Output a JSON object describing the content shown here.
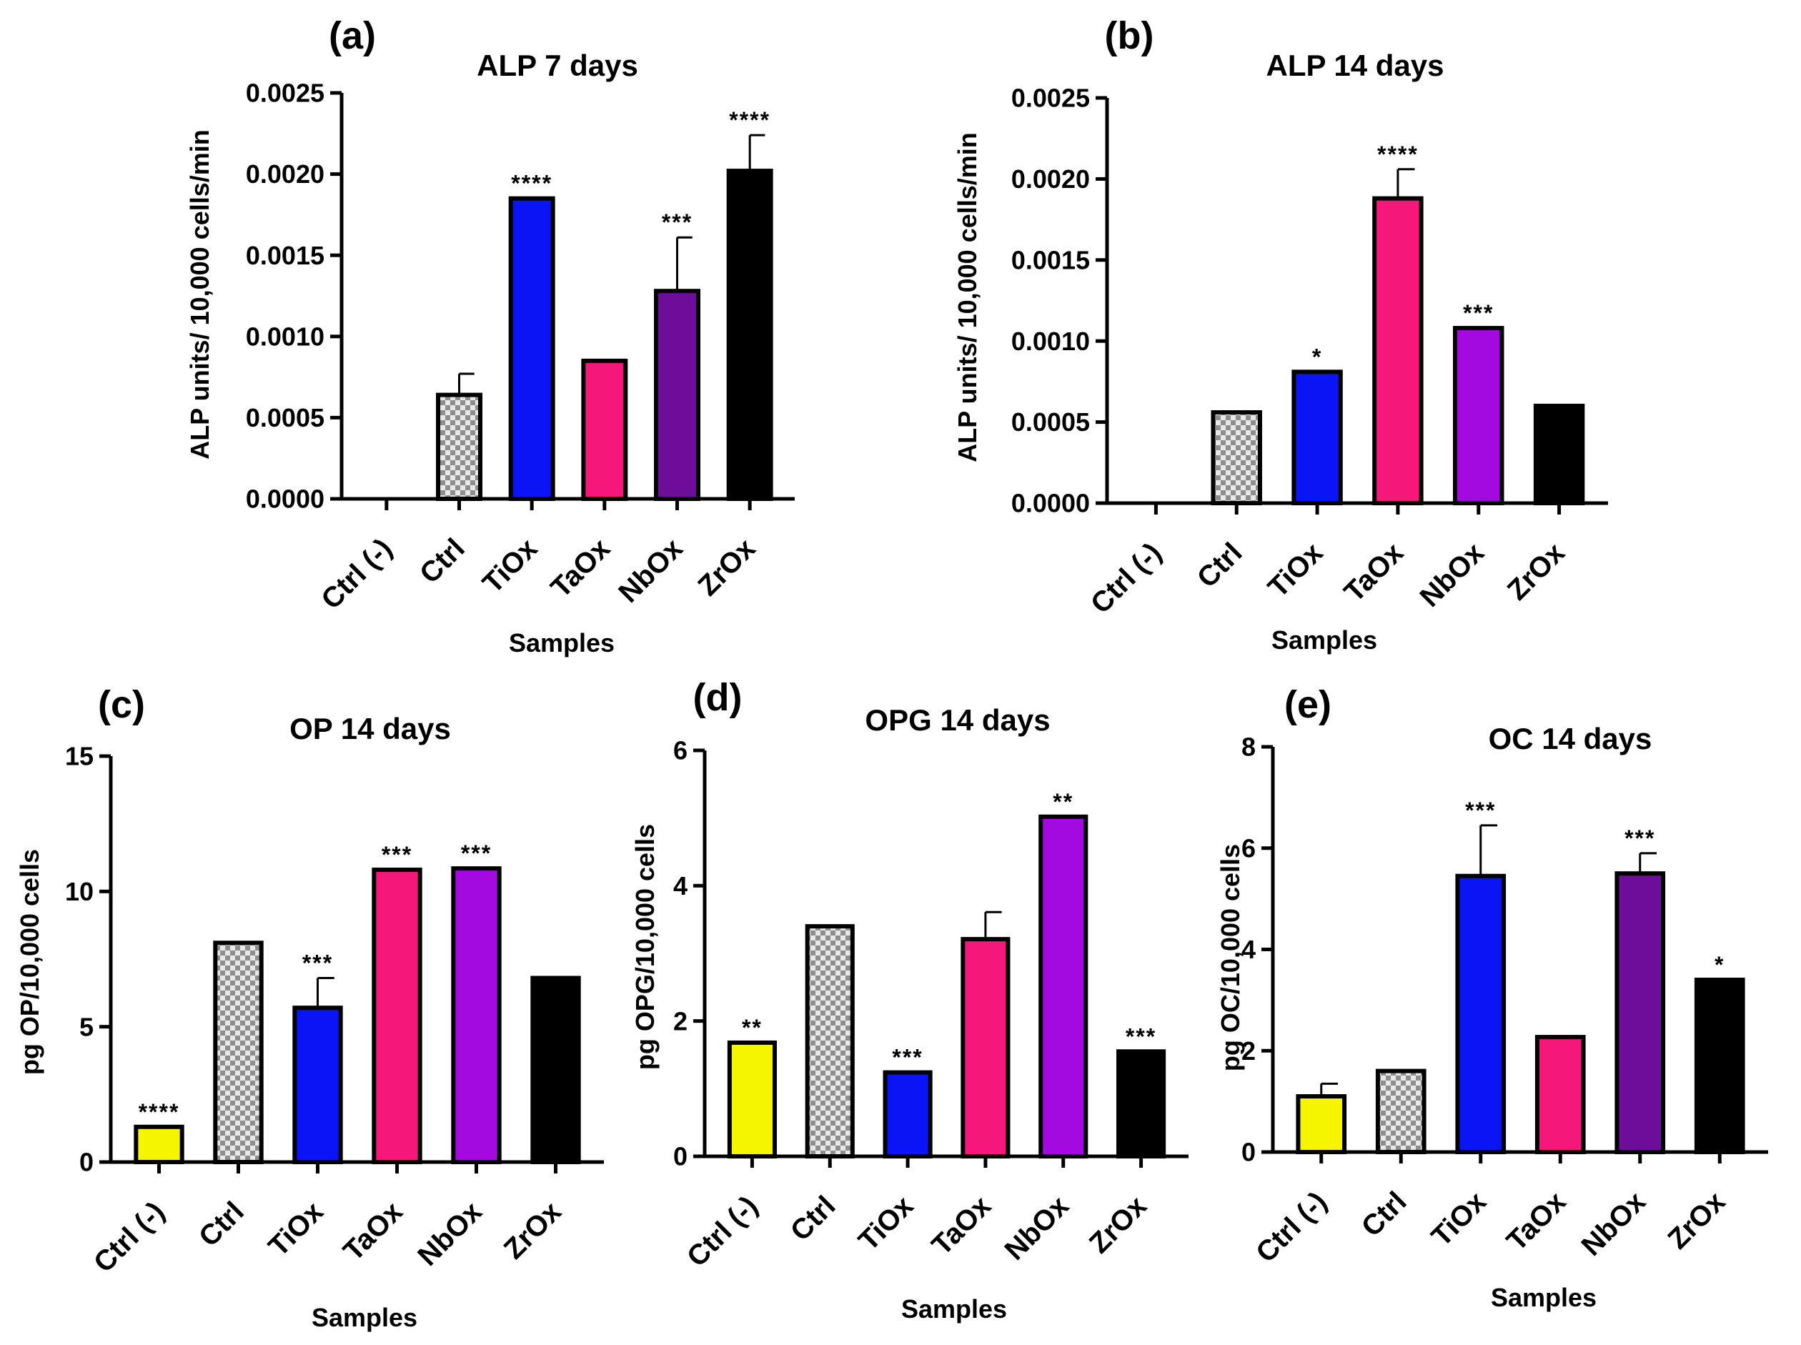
{
  "colors": {
    "ctrl_neg": "#f5f500",
    "tiox": "#0a14f5",
    "taox": "#f5187a",
    "nbox_dark": "#6e0d9a",
    "nbox_bright": "#a20ae0",
    "zrox": "#000000",
    "checker_light": "#e8e8e8",
    "checker_dark": "#8e8e8e"
  },
  "chart_data": [
    {
      "type": "bar",
      "panel": "(a)",
      "title": "ALP 7 days",
      "xlabel": "Samples",
      "ylabel": "ALP units/ 10,000 cells/min",
      "categories": [
        "Ctrl (-)",
        "Ctrl",
        "TiOx",
        "TaOx",
        "NbOx",
        "ZrOx"
      ],
      "values": [
        0,
        0.00064,
        0.00185,
        0.00085,
        0.00128,
        0.00202
      ],
      "errors": [
        0,
        0.00013,
        0,
        0,
        0.00033,
        0.00022
      ],
      "significance": [
        "",
        "",
        "****",
        "",
        "***",
        "****"
      ],
      "bar_colors": [
        "#f5f500",
        "checker",
        "#0a14f5",
        "#f5187a",
        "#6e0d9a",
        "#000000"
      ],
      "ylim": [
        0,
        0.0025
      ],
      "yticks": [
        0,
        0.0005,
        0.001,
        0.0015,
        0.002,
        0.0025
      ],
      "ytick_labels": [
        "0.0000",
        "0.0005",
        "0.0010",
        "0.0015",
        "0.0020",
        "0.0025"
      ]
    },
    {
      "type": "bar",
      "panel": "(b)",
      "title": "ALP 14 days",
      "xlabel": "Samples",
      "ylabel": "ALP units/ 10,000 cells/min",
      "categories": [
        "Ctrl (-)",
        "Ctrl",
        "TiOx",
        "TaOx",
        "NbOx",
        "ZrOx"
      ],
      "values": [
        0,
        0.00056,
        0.00081,
        0.00188,
        0.00108,
        0.0006
      ],
      "errors": [
        0,
        0,
        0,
        0.00018,
        0,
        0
      ],
      "significance": [
        "",
        "",
        "*",
        "****",
        "***",
        ""
      ],
      "bar_colors": [
        "#f5f500",
        "checker",
        "#0a14f5",
        "#f5187a",
        "#a20ae0",
        "#000000"
      ],
      "ylim": [
        0,
        0.0025
      ],
      "yticks": [
        0,
        0.0005,
        0.001,
        0.0015,
        0.002,
        0.0025
      ],
      "ytick_labels": [
        "0.0000",
        "0.0005",
        "0.0010",
        "0.0015",
        "0.0020",
        "0.0025"
      ]
    },
    {
      "type": "bar",
      "panel": "(c)",
      "title": "OP 14 days",
      "xlabel": "Samples",
      "ylabel": "pg OP/10,000 cells",
      "categories": [
        "Ctrl (-)",
        "Ctrl",
        "TiOx",
        "TaOx",
        "NbOx",
        "ZrOx"
      ],
      "values": [
        1.3,
        8.1,
        5.7,
        10.8,
        10.85,
        6.8
      ],
      "errors": [
        0,
        0,
        1.1,
        0,
        0,
        0
      ],
      "significance": [
        "****",
        "",
        "***",
        "***",
        "***",
        ""
      ],
      "bar_colors": [
        "#f5f500",
        "checker",
        "#0a14f5",
        "#f5187a",
        "#a20ae0",
        "#000000"
      ],
      "ylim": [
        0,
        15
      ],
      "yticks": [
        0,
        5,
        10,
        15
      ],
      "ytick_labels": [
        "0",
        "5",
        "10",
        "15"
      ]
    },
    {
      "type": "bar",
      "panel": "(d)",
      "title": "OPG 14 days",
      "xlabel": "Samples",
      "ylabel": "pg OPG/10,000 cells",
      "categories": [
        "Ctrl (-)",
        "Ctrl",
        "TiOx",
        "TaOx",
        "NbOx",
        "ZrOx"
      ],
      "values": [
        1.68,
        3.4,
        1.24,
        3.21,
        5.02,
        1.55
      ],
      "errors": [
        0,
        0,
        0,
        0.4,
        0,
        0
      ],
      "significance": [
        "**",
        "",
        "***",
        "",
        "**",
        "***"
      ],
      "bar_colors": [
        "#f5f500",
        "checker",
        "#0a14f5",
        "#f5187a",
        "#a20ae0",
        "#000000"
      ],
      "ylim": [
        0,
        6
      ],
      "yticks": [
        0,
        2,
        4,
        6
      ],
      "ytick_labels": [
        "0",
        "2",
        "4",
        "6"
      ]
    },
    {
      "type": "bar",
      "panel": "(e)",
      "title": "OC 14 days",
      "xlabel": "Samples",
      "ylabel": "pg OC/10,000 cells",
      "categories": [
        "Ctrl (-)",
        "Ctrl",
        "TiOx",
        "TaOx",
        "NbOx",
        "ZrOx"
      ],
      "values": [
        1.1,
        1.6,
        5.45,
        2.27,
        5.5,
        3.4
      ],
      "errors": [
        0.25,
        0,
        1.0,
        0,
        0.4,
        0
      ],
      "significance": [
        "",
        "",
        "***",
        "",
        "***",
        "*"
      ],
      "bar_colors": [
        "#f5f500",
        "checker",
        "#0a14f5",
        "#f5187a",
        "#6e0d9a",
        "#000000"
      ],
      "ylim": [
        0,
        8
      ],
      "yticks": [
        0,
        2,
        4,
        6,
        8
      ],
      "ytick_labels": [
        "0",
        "2",
        "4",
        "6",
        "8"
      ]
    }
  ]
}
